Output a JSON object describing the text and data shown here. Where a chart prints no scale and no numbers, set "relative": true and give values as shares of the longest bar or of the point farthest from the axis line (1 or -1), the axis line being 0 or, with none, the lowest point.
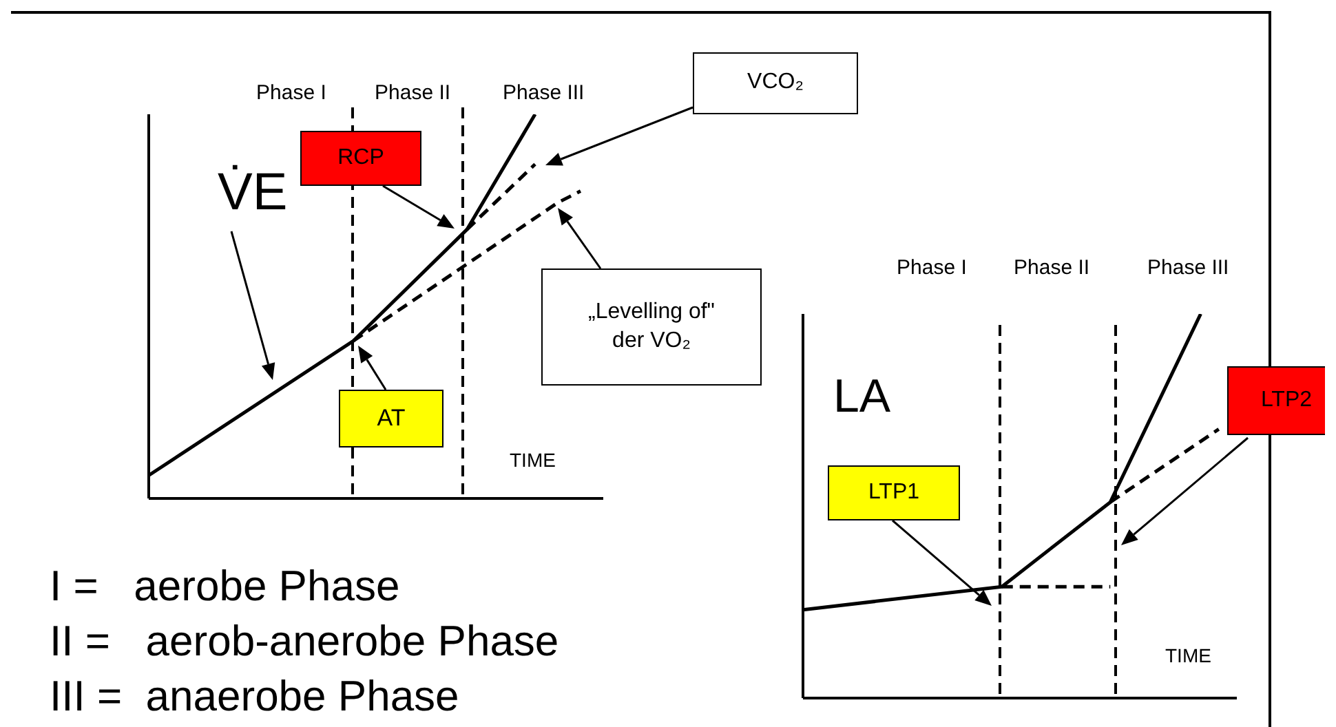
{
  "chart_data": [
    {
      "type": "line",
      "relative": true,
      "categories": [
        null,
        null,
        null,
        null,
        null,
        null,
        null,
        null,
        null,
        null,
        null,
        null,
        null,
        null,
        null,
        null,
        null,
        null,
        null,
        null,
        null
      ],
      "series": [
        {
          "color": "#000000",
          "line_style": "solid",
          "values": [
            0.06,
            null,
            null,
            null,
            null,
            null,
            null,
            null,
            null,
            0.41,
            null,
            null,
            null,
            null,
            0.7,
            null,
            null,
            1.0,
            null,
            null,
            null
          ]
        },
        {
          "color": "#000000",
          "line_style": "dashed",
          "values": [
            null,
            null,
            null,
            null,
            null,
            null,
            null,
            null,
            null,
            null,
            null,
            null,
            null,
            null,
            0.7,
            null,
            null,
            0.87,
            null,
            null,
            null
          ]
        },
        {
          "color": "#000000",
          "line_style": "dashed",
          "values": [
            null,
            null,
            null,
            null,
            null,
            null,
            null,
            null,
            null,
            0.41,
            null,
            null,
            null,
            null,
            0.61,
            null,
            null,
            null,
            0.77,
            0.8,
            null
          ]
        }
      ],
      "annotations": [
        "Phase I",
        "Phase II",
        "Phase III",
        "V̇E",
        "TIME",
        "RCP",
        "AT",
        "VCO₂",
        "„Levelling of\" der VO₂",
        "I =   aerobe Phase",
        "II =   aerob-anerobe Phase",
        "III =  anaerobe Phase"
      ]
    },
    {
      "type": "line",
      "relative": true,
      "categories": [
        null,
        null,
        null,
        null,
        null,
        null,
        null,
        null,
        null,
        null,
        null,
        null,
        null,
        null,
        null,
        null,
        null,
        null,
        null,
        null,
        null,
        null,
        null,
        null,
        null
      ],
      "series": [
        {
          "color": "#000000",
          "line_style": "solid",
          "values": [
            0.23,
            null,
            null,
            null,
            null,
            null,
            null,
            null,
            null,
            null,
            null,
            0.29,
            null,
            null,
            null,
            null,
            null,
            0.51,
            null,
            null,
            null,
            null,
            1.0,
            null,
            null
          ]
        },
        {
          "color": "#000000",
          "line_style": "dashed",
          "values": [
            null,
            null,
            null,
            null,
            null,
            null,
            null,
            null,
            null,
            null,
            null,
            0.29,
            null,
            null,
            null,
            null,
            null,
            0.29,
            null,
            null,
            null,
            null,
            null,
            null,
            null
          ]
        },
        {
          "color": "#000000",
          "line_style": "dashed",
          "values": [
            null,
            null,
            null,
            null,
            null,
            null,
            null,
            null,
            null,
            null,
            null,
            null,
            null,
            null,
            null,
            null,
            null,
            0.51,
            null,
            null,
            null,
            null,
            null,
            0.7,
            null
          ]
        }
      ],
      "annotations": [
        "Phase I",
        "Phase II",
        "Phase III",
        "LA",
        "TIME",
        "LTP1",
        "LTP2"
      ]
    }
  ]
}
